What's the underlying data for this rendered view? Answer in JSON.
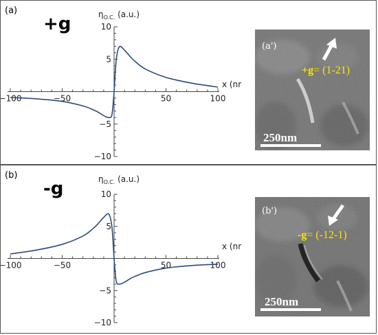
{
  "panels": [
    {
      "label": "(a)",
      "sign_label": "+g",
      "y_axis_label": "η",
      "y_axis_sub": "O.C.",
      "y_axis_unit": " (a.u.)",
      "x_axis_label": "x (nm)",
      "x_ticks": [
        "−100",
        "−50",
        "50",
        "100"
      ],
      "y_ticks": [
        "10",
        "5",
        "−5",
        "−10"
      ],
      "micrograph": {
        "label": "(a')",
        "g_text_bold": "+g",
        "g_text": "= (1-21)",
        "scalebar": "250nm",
        "arrow_direction": "up-right"
      }
    },
    {
      "label": "(b)",
      "sign_label": "-g",
      "y_axis_label": "η",
      "y_axis_sub": "O.C.",
      "y_axis_unit": " (a.u.)",
      "x_axis_label": "x (nm)",
      "x_ticks": [
        "−100",
        "−50",
        "50",
        "100"
      ],
      "y_ticks": [
        "10",
        "5",
        "−5",
        "−10"
      ],
      "micrograph": {
        "label": "(b')",
        "g_text_bold": "-g",
        "g_text": "= (-12-1)",
        "scalebar": "250nm",
        "arrow_direction": "down-left"
      }
    }
  ],
  "chart_data": [
    {
      "type": "line",
      "title": "",
      "xlabel": "x (nm)",
      "ylabel": "ηO.C. (a.u.)",
      "xlim": [
        -100,
        100
      ],
      "ylim": [
        -10,
        10
      ],
      "line_color": "#2b4a7e",
      "series": [
        {
          "x": [
            -100,
            -75,
            -50,
            -30,
            -20,
            -15,
            -10,
            -5,
            -2,
            0,
            2,
            5,
            10,
            15,
            20,
            30,
            50,
            75,
            100
          ],
          "y": [
            -0.9,
            -1.1,
            -1.5,
            -2.2,
            -2.8,
            -3.2,
            -3.7,
            -4.0,
            -3.5,
            0.0,
            4.8,
            6.9,
            6.4,
            5.5,
            4.7,
            3.5,
            2.2,
            1.3,
            0.7
          ]
        }
      ]
    },
    {
      "type": "line",
      "title": "",
      "xlabel": "x (nm)",
      "ylabel": "ηO.C. (a.u.)",
      "xlim": [
        -100,
        100
      ],
      "ylim": [
        -10,
        10
      ],
      "line_color": "#2b4a7e",
      "series": [
        {
          "x": [
            -100,
            -75,
            -50,
            -30,
            -20,
            -15,
            -10,
            -5,
            -2,
            0,
            2,
            5,
            10,
            15,
            20,
            30,
            50,
            75,
            100
          ],
          "y": [
            0.7,
            1.3,
            2.2,
            3.5,
            4.7,
            5.5,
            6.4,
            6.9,
            4.8,
            0.0,
            -3.5,
            -4.0,
            -3.7,
            -3.2,
            -2.8,
            -2.2,
            -1.5,
            -1.1,
            -0.9
          ]
        }
      ]
    }
  ]
}
